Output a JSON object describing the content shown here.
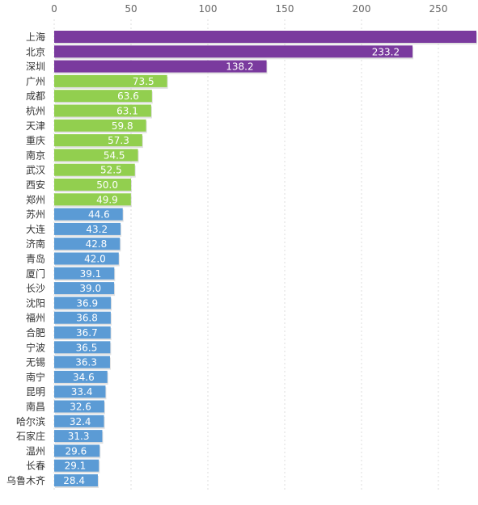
{
  "chart_data": {
    "type": "bar",
    "orientation": "horizontal",
    "title": "",
    "xlabel": "",
    "ylabel": "",
    "xlim": [
      0,
      270
    ],
    "x_ticks": [
      "0",
      "50",
      "100",
      "150",
      "200",
      "250"
    ],
    "grid": true,
    "categories": [
      "上海",
      "北京",
      "深圳",
      "广州",
      "成都",
      "杭州",
      "天津",
      "重庆",
      "南京",
      "武汉",
      "西安",
      "郑州",
      "苏州",
      "大连",
      "济南",
      "青岛",
      "厦门",
      "长沙",
      "沈阳",
      "福州",
      "合肥",
      "宁波",
      "无锡",
      "南宁",
      "昆明",
      "南昌",
      "哈尔滨",
      "石家庄",
      "温州",
      "长春",
      "乌鲁木齐"
    ],
    "values": [
      279.0,
      233.2,
      138.2,
      73.5,
      63.6,
      63.1,
      59.8,
      57.3,
      54.5,
      52.5,
      50.0,
      49.9,
      44.6,
      43.2,
      42.8,
      42.0,
      39.1,
      39.0,
      36.9,
      36.8,
      36.7,
      36.5,
      36.3,
      34.6,
      33.4,
      32.6,
      32.4,
      31.3,
      29.6,
      29.1,
      28.4
    ],
    "value_labels": [
      "",
      "233.2",
      "138.2",
      "73.5",
      "63.6",
      "63.1",
      "59.8",
      "57.3",
      "54.5",
      "52.5",
      "50.0",
      "49.9",
      "44.6",
      "43.2",
      "42.8",
      "42.0",
      "39.1",
      "39.0",
      "36.9",
      "36.8",
      "36.7",
      "36.5",
      "36.3",
      "34.6",
      "33.4",
      "32.6",
      "32.4",
      "31.3",
      "29.6",
      "29.1",
      "28.4"
    ],
    "tiers": [
      "purple",
      "purple",
      "purple",
      "green",
      "green",
      "green",
      "green",
      "green",
      "green",
      "green",
      "green",
      "green",
      "blue",
      "blue",
      "blue",
      "blue",
      "blue",
      "blue",
      "blue",
      "blue",
      "blue",
      "blue",
      "blue",
      "blue",
      "blue",
      "blue",
      "blue",
      "blue",
      "blue",
      "blue",
      "blue"
    ],
    "colors": {
      "purple": "#7a3a9e",
      "green": "#92cf4f",
      "blue": "#5b9bd5",
      "grid": "#dcdcdc"
    }
  }
}
